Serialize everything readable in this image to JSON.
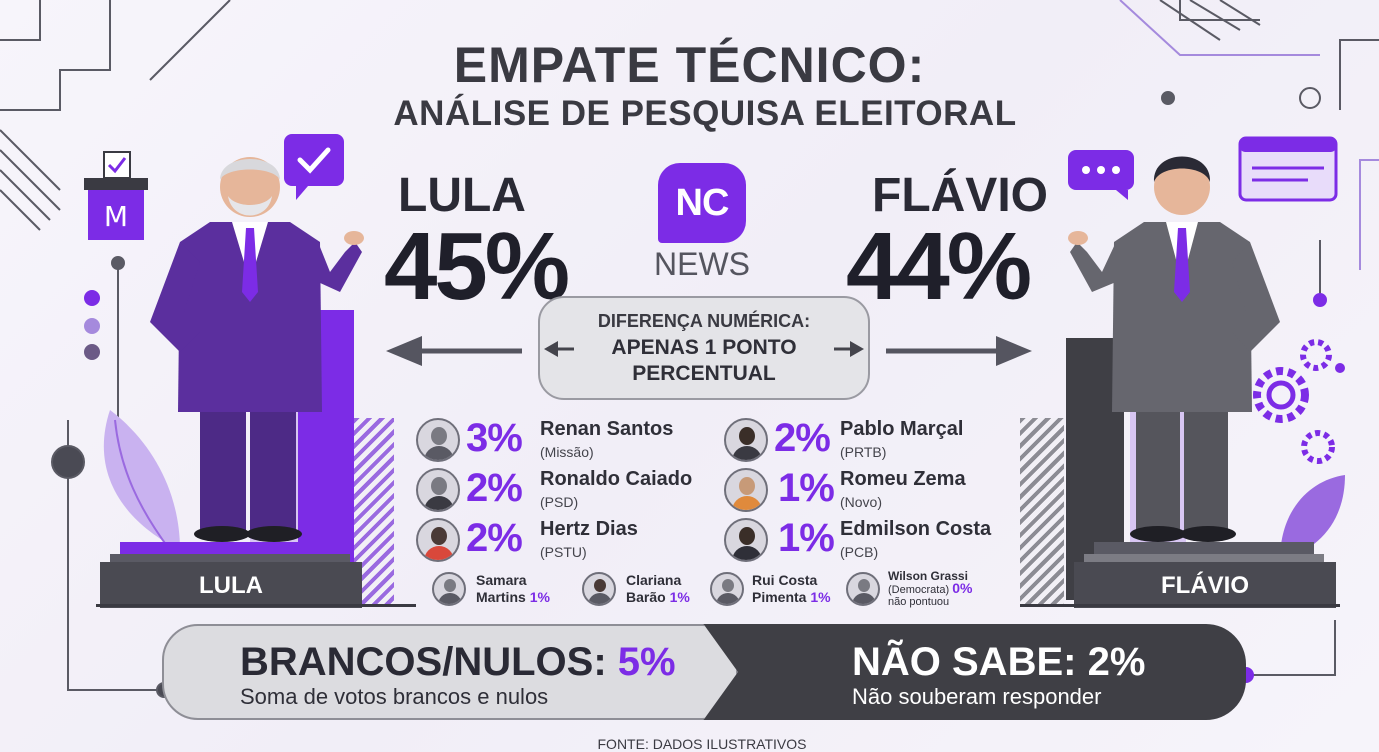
{
  "title": {
    "line1": "EMPATE TÉCNICO:",
    "line2": "ANÁLISE DE PESQUISA ELEITORAL"
  },
  "logo": {
    "mark": "NC",
    "name": "NEWS"
  },
  "difference": {
    "line1": "DIFERENÇA NUMÉRICA:",
    "line2": "APENAS 1 PONTO",
    "line3": "PERCENTUAL"
  },
  "chart_data": {
    "type": "bar",
    "title": "EMPATE TÉCNICO: ANÁLISE DE PESQUISA ELEITORAL",
    "unit": "%",
    "leaders": [
      {
        "name": "LULA",
        "pct_label": "45%",
        "value": 45,
        "pedestal_label": "LULA"
      },
      {
        "name": "FLÁVIO",
        "pct_label": "44%",
        "value": 44,
        "pedestal_label": "FLÁVIO"
      }
    ],
    "others_left": [
      {
        "pct": "3%",
        "value": 3,
        "name": "Renan Santos",
        "party": "(Missão)"
      },
      {
        "pct": "2%",
        "value": 2,
        "name": "Ronaldo Caiado",
        "party": "(PSD)"
      },
      {
        "pct": "2%",
        "value": 2,
        "name": "Hertz Dias",
        "party": "(PSTU)"
      }
    ],
    "others_right": [
      {
        "pct": "2%",
        "value": 2,
        "name": "Pablo Marçal",
        "party": "(PRTB)"
      },
      {
        "pct": "1%",
        "value": 1,
        "name": "Romeu Zema",
        "party": "(Novo)"
      },
      {
        "pct": "1%",
        "value": 1,
        "name": "Edmilson Costa",
        "party": "(PCB)"
      }
    ],
    "minor": [
      {
        "line1": "Samara",
        "line2": "Martins",
        "pct": "1%",
        "value": 1
      },
      {
        "line1": "Clariana",
        "line2": "Barão",
        "pct": "1%",
        "value": 1
      },
      {
        "line1": "Rui Costa",
        "line2": "Pimenta",
        "pct": "1%",
        "value": 1
      },
      {
        "line1": "Wilson Grassi",
        "line2": "(Democrata)",
        "pct": "0%",
        "note": "não pontuou",
        "value": 0
      }
    ],
    "blank_null": {
      "label": "BRANCOS/NULOS:",
      "pct": "5%",
      "value": 5,
      "desc": "Soma de votos brancos e nulos"
    },
    "dont_know": {
      "label": "NÃO SABE: 2%",
      "value": 2,
      "desc": "Não souberam responder"
    },
    "source": "FONTE: DADOS ILUSTRATIVOS"
  },
  "colors": {
    "accent": "#7c2ce6",
    "dark": "#3f3f45",
    "text": "#2a2a35"
  }
}
